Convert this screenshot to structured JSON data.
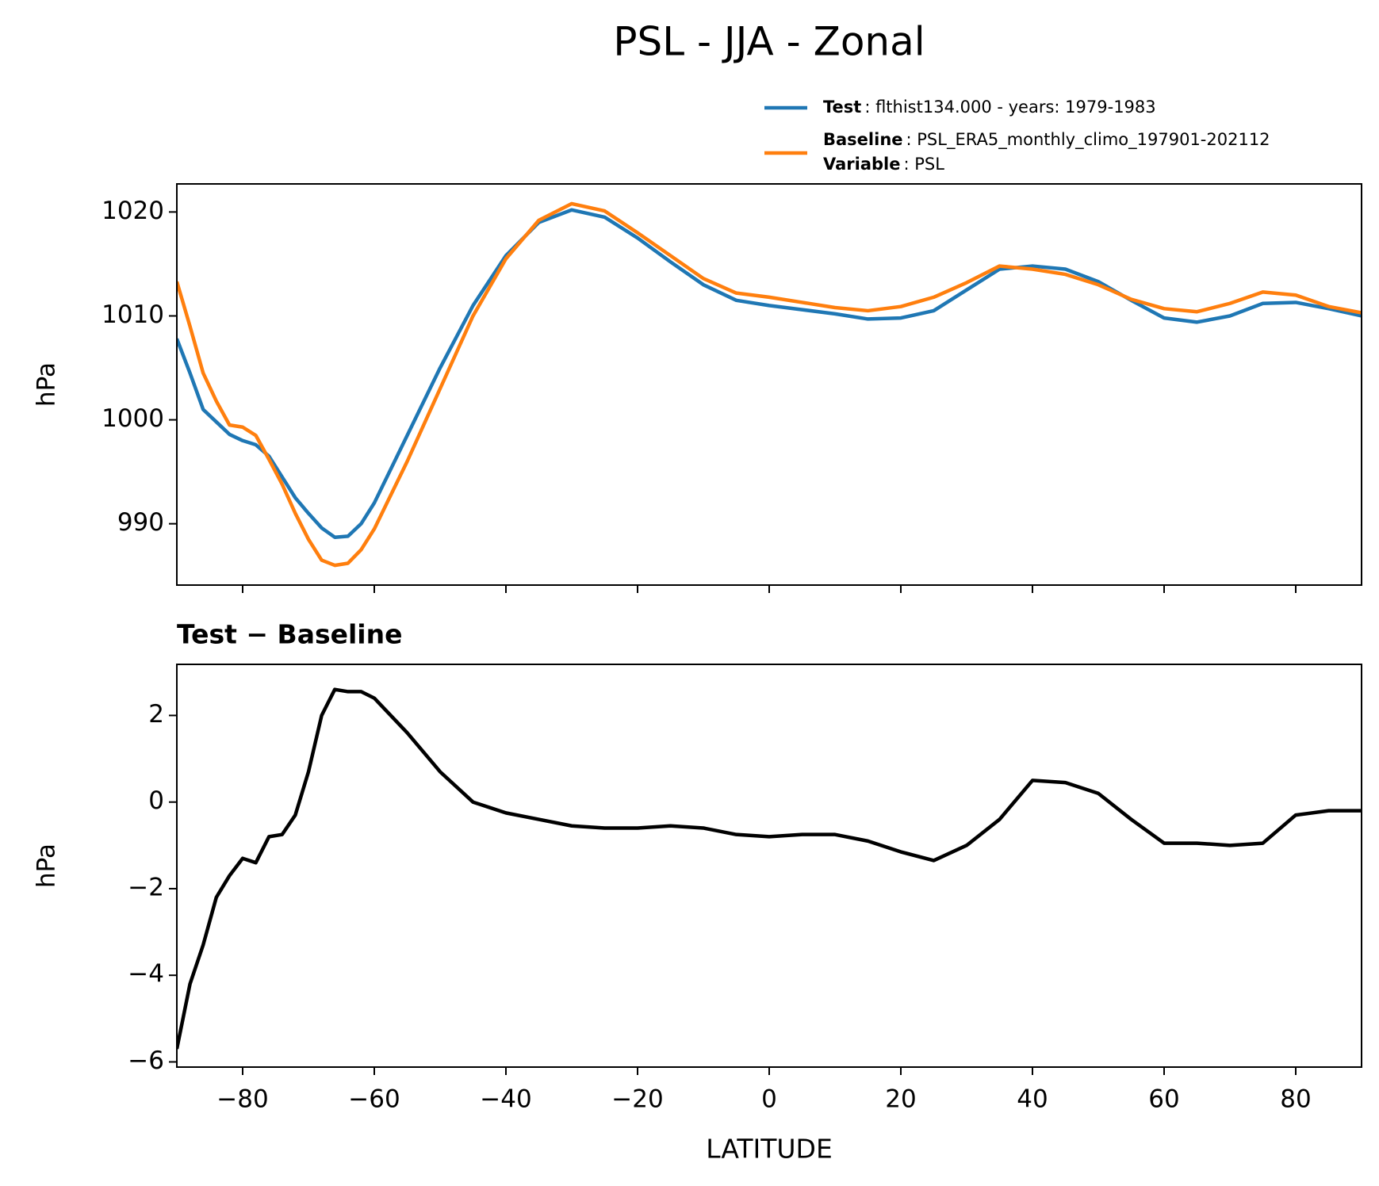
{
  "title": "PSL - JJA - Zonal",
  "chart_data": [
    {
      "type": "line",
      "ylabel": "hPa",
      "x": [
        -90,
        -88,
        -86,
        -84,
        -82,
        -80,
        -78,
        -76,
        -74,
        -72,
        -70,
        -68,
        -66,
        -64,
        -62,
        -60,
        -55,
        -50,
        -45,
        -40,
        -35,
        -30,
        -25,
        -20,
        -15,
        -10,
        -5,
        0,
        5,
        10,
        15,
        20,
        25,
        30,
        35,
        40,
        45,
        50,
        55,
        60,
        65,
        70,
        75,
        80,
        85,
        90
      ],
      "series": [
        {
          "name": "Test",
          "detail": ": flthist134.000 - years: 1979-1983",
          "color": "#1f77b4",
          "values": [
            1007.8,
            1004.5,
            1001,
            999.8,
            998.6,
            998,
            997.6,
            996.5,
            994.5,
            992.5,
            991,
            989.6,
            988.7,
            988.8,
            990,
            992,
            998.5,
            1005,
            1011,
            1015.8,
            1019,
            1020.2,
            1019.5,
            1017.5,
            1015.2,
            1013,
            1011.5,
            1011,
            1010.6,
            1010.2,
            1009.7,
            1009.8,
            1010.5,
            1012.5,
            1014.5,
            1014.8,
            1014.5,
            1013.3,
            1011.5,
            1009.8,
            1009.4,
            1010,
            1011.2,
            1011.3,
            1010.7,
            1010
          ]
        },
        {
          "name": "Baseline",
          "detail": ": PSL_ERA5_monthly_climo_197901-202112",
          "color": "#ff7f0e",
          "values": [
            1013.3,
            1009,
            1004.5,
            1001.8,
            999.5,
            999.3,
            998.5,
            996.2,
            993.8,
            991,
            988.5,
            986.5,
            986,
            986.2,
            987.5,
            989.5,
            996,
            1003,
            1010,
            1015.5,
            1019.2,
            1020.8,
            1020.1,
            1018,
            1015.8,
            1013.6,
            1012.2,
            1011.8,
            1011.3,
            1010.8,
            1010.5,
            1010.9,
            1011.8,
            1013.2,
            1014.8,
            1014.5,
            1014,
            1013,
            1011.6,
            1010.7,
            1010.4,
            1011.2,
            1012.3,
            1012,
            1010.9,
            1010.3
          ]
        }
      ],
      "variable": {
        "name": "Variable",
        "detail": ": PSL"
      },
      "xlim": [
        -90,
        90
      ],
      "xticks": [
        -80,
        -60,
        -40,
        -20,
        0,
        20,
        40,
        60,
        80
      ],
      "ylim": [
        984.1,
        1022.7
      ],
      "yticks": [
        990,
        1000,
        1010,
        1020
      ]
    },
    {
      "type": "line",
      "title": "Test − Baseline",
      "xlabel": "LATITUDE",
      "ylabel": "hPa",
      "x": [
        -90,
        -88,
        -86,
        -84,
        -82,
        -80,
        -78,
        -76,
        -74,
        -72,
        -70,
        -68,
        -66,
        -64,
        -62,
        -60,
        -55,
        -50,
        -45,
        -40,
        -35,
        -30,
        -25,
        -20,
        -15,
        -10,
        -5,
        0,
        5,
        10,
        15,
        20,
        25,
        30,
        35,
        40,
        45,
        50,
        55,
        60,
        65,
        70,
        75,
        80,
        85,
        90
      ],
      "series": [
        {
          "color": "#000000",
          "values": [
            -5.7,
            -4.2,
            -3.3,
            -2.2,
            -1.7,
            -1.3,
            -1.4,
            -0.8,
            -0.75,
            -0.3,
            0.7,
            2.0,
            2.6,
            2.55,
            2.55,
            2.4,
            1.6,
            0.7,
            0.0,
            -0.25,
            -0.4,
            -0.55,
            -0.6,
            -0.6,
            -0.55,
            -0.6,
            -0.75,
            -0.8,
            -0.75,
            -0.75,
            -0.9,
            -1.15,
            -1.35,
            -1.0,
            -0.4,
            0.5,
            0.45,
            0.2,
            -0.4,
            -0.95,
            -0.95,
            -1.0,
            -0.95,
            -0.3,
            -0.2,
            -0.2
          ]
        }
      ],
      "xlim": [
        -90,
        90
      ],
      "xticks": [
        {
          "value": -80,
          "label": "−80"
        },
        {
          "value": -60,
          "label": "−60"
        },
        {
          "value": -40,
          "label": "−40"
        },
        {
          "value": -20,
          "label": "−20"
        },
        0,
        20,
        40,
        60,
        80
      ],
      "ylim": [
        -6.12,
        3.18
      ],
      "yticks": [
        {
          "value": -6,
          "label": "−6"
        },
        {
          "value": -4,
          "label": "−4"
        },
        {
          "value": -2,
          "label": "−2"
        },
        0,
        2
      ]
    }
  ]
}
